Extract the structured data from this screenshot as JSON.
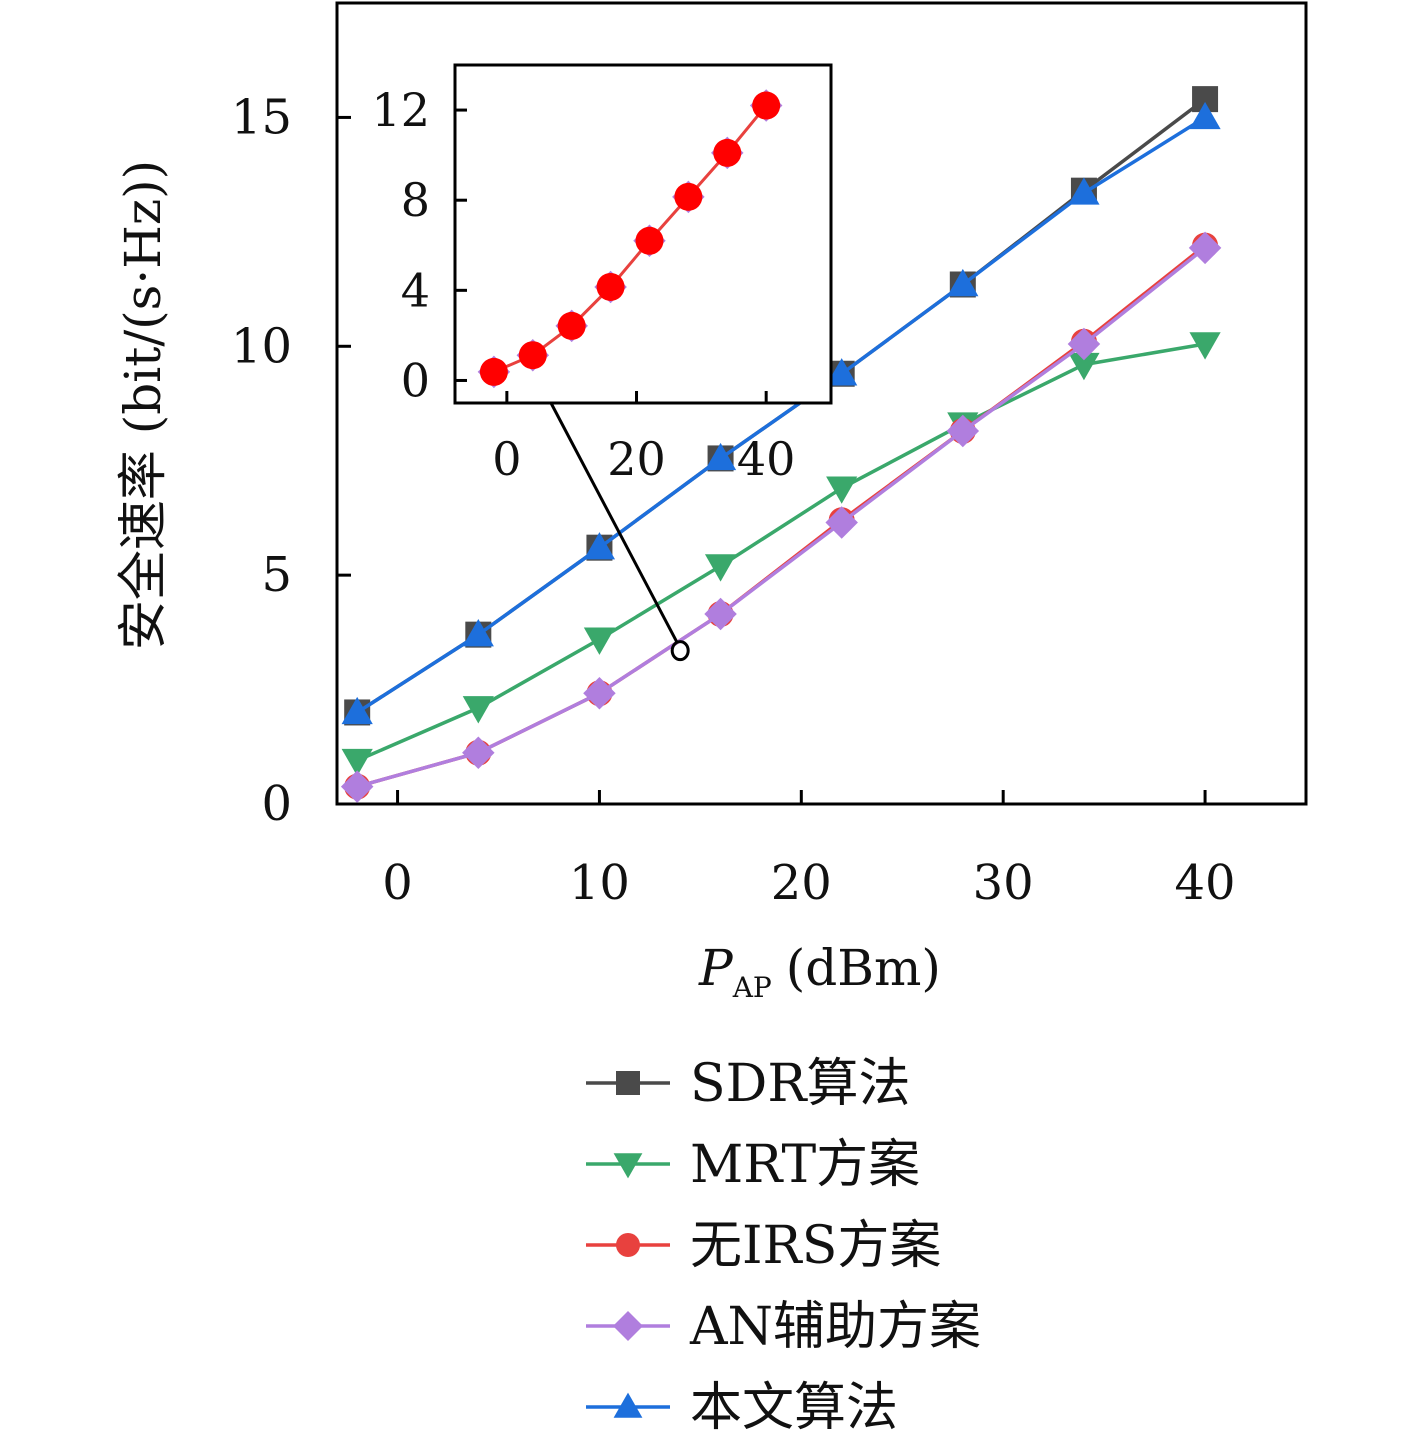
{
  "chart_data": {
    "type": "line",
    "xlabel": "P",
    "xlabel_sub": "AP",
    "xlabel_unit": "(dBm)",
    "ylabel": "安全速率 (bit/(s·Hz))",
    "xlim": [
      -3,
      45
    ],
    "ylim": [
      0,
      17.5
    ],
    "xticks": [
      0,
      10,
      20,
      30,
      40
    ],
    "yticks": [
      0,
      5,
      10,
      15
    ],
    "grid": false,
    "legend_position": "bottom",
    "x": [
      -2,
      4,
      10,
      16,
      22,
      28,
      34,
      40
    ],
    "series": [
      {
        "name": "SDR算法",
        "color": "#4a4a4a",
        "marker": "square",
        "values": [
          2.0,
          3.7,
          5.6,
          7.55,
          9.4,
          11.35,
          13.4,
          15.4
        ]
      },
      {
        "name": "MRT方案",
        "color": "#3aa86b",
        "marker": "triangle-down",
        "values": [
          0.95,
          2.1,
          3.6,
          5.2,
          6.9,
          8.3,
          9.6,
          10.05
        ]
      },
      {
        "name": "无IRS方案",
        "color": "#e8413e",
        "marker": "circle",
        "values": [
          0.38,
          1.12,
          2.42,
          4.15,
          6.2,
          8.15,
          10.1,
          12.2
        ]
      },
      {
        "name": "AN辅助方案",
        "color": "#b07ede",
        "marker": "diamond",
        "values": [
          0.38,
          1.12,
          2.42,
          4.15,
          6.15,
          8.15,
          10.05,
          12.15
        ]
      },
      {
        "name": "本文算法",
        "color": "#1d6fdc",
        "marker": "triangle-up",
        "values": [
          2.0,
          3.7,
          5.6,
          7.55,
          9.4,
          11.35,
          13.35,
          15.0
        ]
      }
    ],
    "inset": {
      "series_name": "无IRS方案 / AN辅助方案",
      "xlim": [
        -8,
        50
      ],
      "ylim": [
        -1,
        14
      ],
      "xticks": [
        0,
        20,
        40
      ],
      "yticks": [
        0,
        4,
        8,
        12
      ],
      "line_color": "#e8413e",
      "marker_fill": "#ff0000",
      "marker_edge": "#b07ede",
      "x": [
        -2,
        4,
        10,
        16,
        22,
        28,
        34,
        40
      ],
      "values": [
        0.38,
        1.12,
        2.42,
        4.15,
        6.2,
        8.15,
        10.1,
        12.2
      ],
      "zoom_point": [
        14,
        3.35
      ]
    }
  }
}
